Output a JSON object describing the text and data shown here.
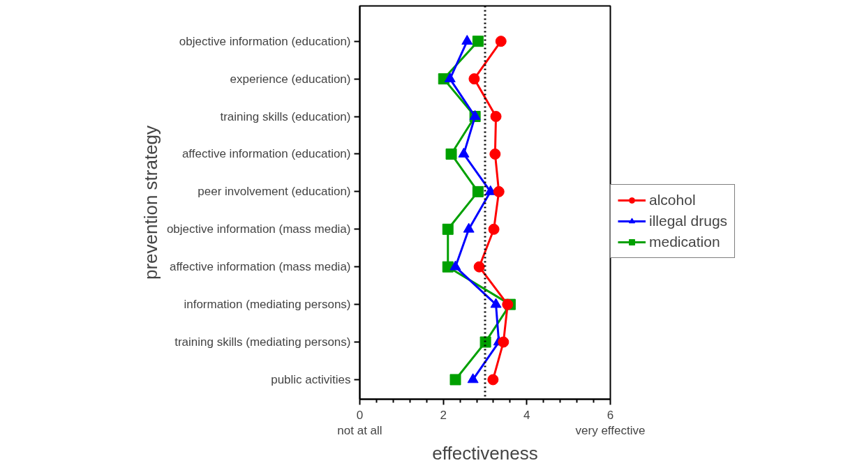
{
  "chart_data": {
    "type": "line",
    "xlabel": "effectiveness",
    "ylabel": "prevention strategy",
    "categories": [
      "objective information (education)",
      "experience (education)",
      "training skills (education)",
      "affective information (education)",
      "peer involvement (education)",
      "objective information (mass media)",
      "affective information (mass media)",
      "information (mediating persons)",
      "training skills (mediating persons)",
      "public activities"
    ],
    "orientation": "horizontal",
    "xlim": [
      0,
      6
    ],
    "xticks": [
      {
        "value": 0,
        "label": "0\nnot at all"
      },
      {
        "value": 0.4,
        "label": null
      },
      {
        "value": 0.8,
        "label": null
      },
      {
        "value": 1.2,
        "label": null
      },
      {
        "value": 1.6,
        "label": null
      },
      2,
      {
        "value": 2.4,
        "label": null
      },
      {
        "value": 2.8,
        "label": null
      },
      {
        "value": 3.2,
        "label": null
      },
      {
        "value": 3.6,
        "label": null
      },
      4,
      {
        "value": 4.4,
        "label": null
      },
      {
        "value": 4.8,
        "label": null
      },
      {
        "value": 5.2,
        "label": null
      },
      {
        "value": 5.6,
        "label": null
      },
      {
        "value": 6,
        "label": "6\nvery effective"
      }
    ],
    "series": [
      {
        "name": "alcohol",
        "color": "#ff0000",
        "marker": "circle",
        "values": [
          3.38,
          2.74,
          3.26,
          3.24,
          3.33,
          3.21,
          2.86,
          3.54,
          3.44,
          3.19
        ]
      },
      {
        "name": "illegal drugs",
        "color": "#0000ff",
        "marker": "triangle",
        "values": [
          2.57,
          2.16,
          2.76,
          2.49,
          3.13,
          2.61,
          2.29,
          3.26,
          3.33,
          2.71
        ]
      },
      {
        "name": "medication",
        "color": "#00a000",
        "marker": "square",
        "values": [
          2.83,
          2.01,
          2.76,
          2.19,
          2.83,
          2.11,
          2.11,
          3.6,
          3.01,
          2.29
        ]
      }
    ],
    "ref_lines": [
      {
        "axis": "x",
        "value": 3,
        "label": null,
        "color": "#000000",
        "line_style": "dotted"
      }
    ],
    "legend": "right",
    "grid": false
  }
}
